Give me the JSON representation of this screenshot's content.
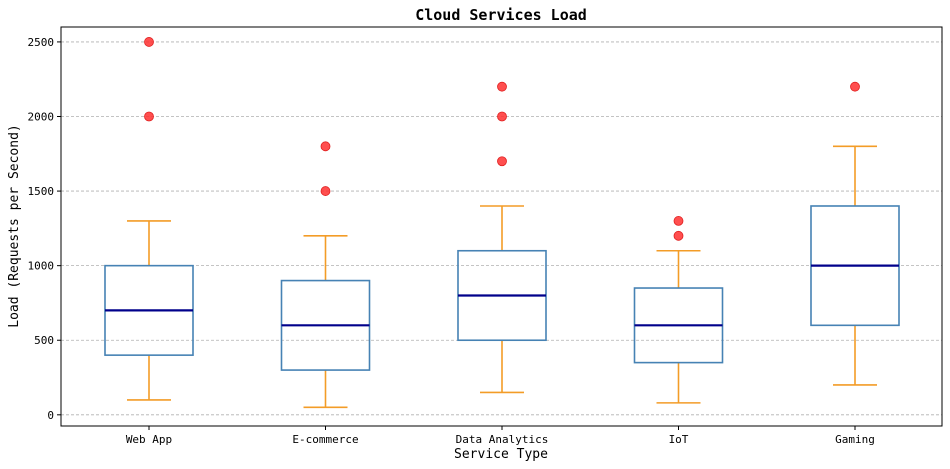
{
  "chart_data": {
    "type": "box",
    "title": "Cloud Services Load",
    "xlabel": "Service Type",
    "ylabel": "Load (Requests per Second)",
    "ylim": [
      -75,
      2600
    ],
    "yticks": [
      0,
      500,
      1000,
      1500,
      2000,
      2500
    ],
    "grid": "y-dashed",
    "categories": [
      "Web App",
      "E-commerce",
      "Data Analytics",
      "IoT",
      "Gaming"
    ],
    "boxes": [
      {
        "category": "Web App",
        "whisker_low": 100,
        "q1": 400,
        "median": 700,
        "q3": 1000,
        "whisker_high": 1300,
        "outliers": [
          2000,
          2500
        ]
      },
      {
        "category": "E-commerce",
        "whisker_low": 50,
        "q1": 300,
        "median": 600,
        "q3": 900,
        "whisker_high": 1200,
        "outliers": [
          1500,
          1800
        ]
      },
      {
        "category": "Data Analytics",
        "whisker_low": 150,
        "q1": 500,
        "median": 800,
        "q3": 1100,
        "whisker_high": 1400,
        "outliers": [
          1700,
          2000,
          2200
        ]
      },
      {
        "category": "IoT",
        "whisker_low": 80,
        "q1": 350,
        "median": 600,
        "q3": 850,
        "whisker_high": 1100,
        "outliers": [
          1200,
          1300
        ]
      },
      {
        "category": "Gaming",
        "whisker_low": 200,
        "q1": 600,
        "median": 1000,
        "q3": 1400,
        "whisker_high": 1800,
        "outliers": [
          2200
        ]
      }
    ],
    "colors": {
      "box_edge": "#4682b4",
      "median": "#00008b",
      "whisker": "#f39c27",
      "outlier": "#ff3030",
      "grid": "#b0b0b0"
    }
  }
}
